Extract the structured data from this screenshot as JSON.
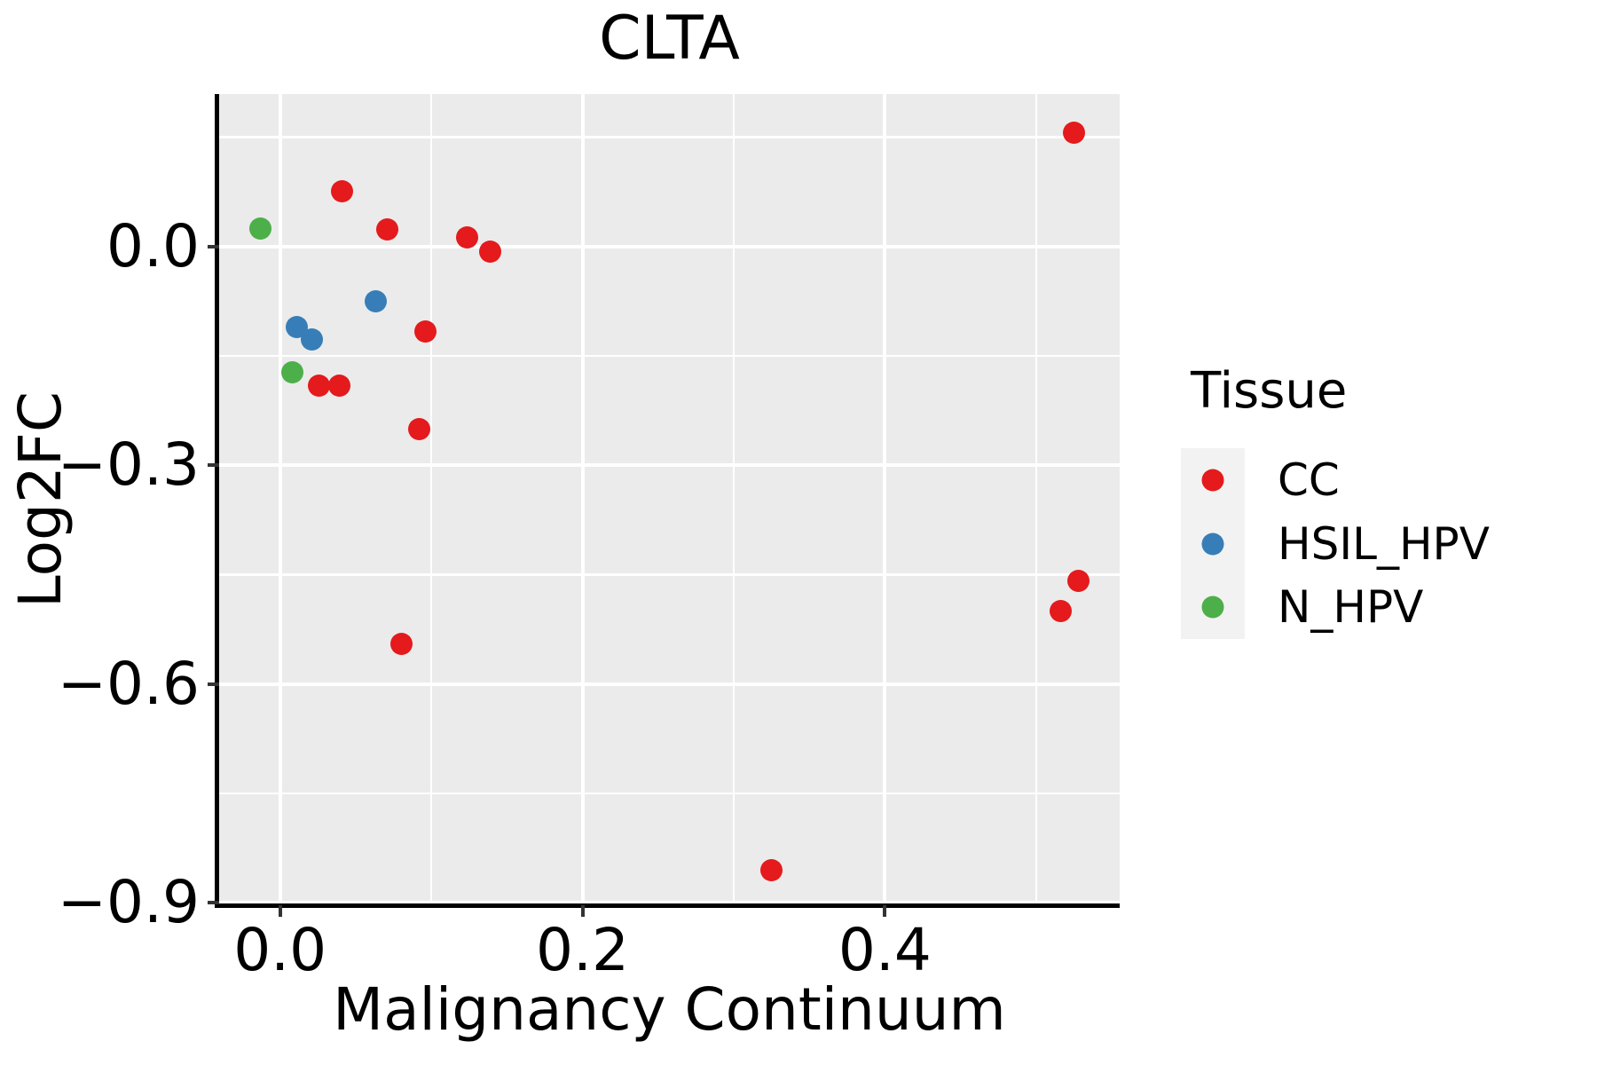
{
  "title": "CLTA",
  "axes": {
    "x": {
      "label": "Malignancy Continuum",
      "ticks": [
        0.0,
        0.2,
        0.4
      ],
      "tick_labels": [
        "0.0",
        "0.2",
        "0.4"
      ],
      "minor_ticks": [
        0.1,
        0.3,
        0.5
      ]
    },
    "y": {
      "label": "Log2FC",
      "ticks": [
        0.0,
        -0.3,
        -0.6,
        -0.9
      ],
      "tick_labels": [
        "0.0",
        "−0.3",
        "−0.6",
        "−0.9"
      ],
      "minor_ticks": [
        0.15,
        -0.15,
        -0.45,
        -0.75
      ]
    }
  },
  "legend": {
    "title": "Tissue",
    "items": [
      {
        "label": "CC",
        "color": "#E41A1C"
      },
      {
        "label": "HSIL_HPV",
        "color": "#377EB8"
      },
      {
        "label": "N_HPV",
        "color": "#4DAF4A"
      }
    ]
  },
  "chart_data": {
    "type": "scatter",
    "title": "CLTA",
    "xlabel": "Malignancy Continuum",
    "ylabel": "Log2FC",
    "xlim": [
      -0.0403,
      0.5553
    ],
    "ylim": [
      -0.9033,
      0.209
    ],
    "grid": true,
    "legend_position": "right",
    "panel_bg": "#EBEBEB",
    "grid_color": "#FFFFFF",
    "series": [
      {
        "name": "CC",
        "color": "#E41A1C",
        "points": [
          [
            0.041,
            0.076
          ],
          [
            0.071,
            0.024
          ],
          [
            0.124,
            0.013
          ],
          [
            0.139,
            -0.007
          ],
          [
            0.096,
            -0.116
          ],
          [
            0.026,
            -0.191
          ],
          [
            0.039,
            -0.191
          ],
          [
            0.092,
            -0.25
          ],
          [
            0.08,
            -0.545
          ],
          [
            0.525,
            0.156
          ],
          [
            0.528,
            -0.459
          ],
          [
            0.516,
            -0.5
          ],
          [
            0.325,
            -0.855
          ]
        ]
      },
      {
        "name": "HSIL_HPV",
        "color": "#377EB8",
        "points": [
          [
            0.063,
            -0.075
          ],
          [
            0.011,
            -0.111
          ],
          [
            0.021,
            -0.127
          ]
        ]
      },
      {
        "name": "N_HPV",
        "color": "#4DAF4A",
        "points": [
          [
            -0.013,
            0.025
          ],
          [
            0.008,
            -0.173
          ]
        ]
      }
    ]
  },
  "colors": {
    "panel_bg": "#EBEBEB",
    "grid": "#FFFFFF",
    "axis_line": "#000000",
    "tick_mark": "#333333",
    "text": "#000000",
    "legend_key_bg": "#F2F2F2"
  }
}
